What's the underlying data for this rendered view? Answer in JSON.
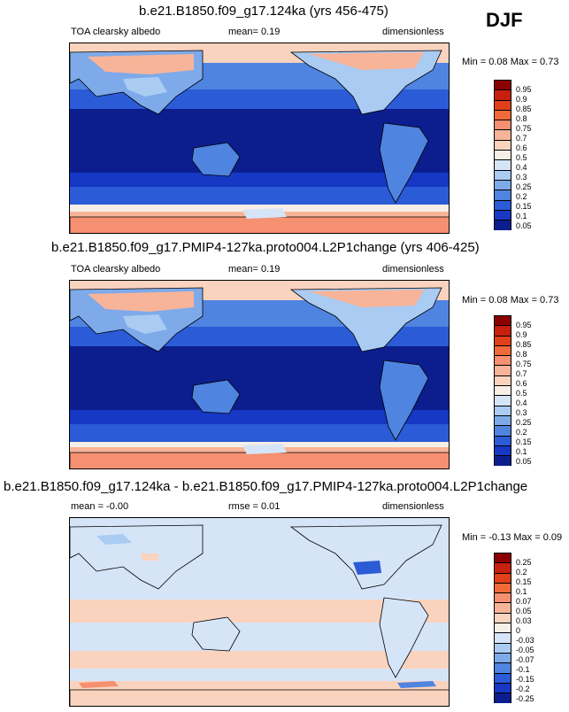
{
  "season": "DJF",
  "panels": [
    {
      "title": "b.e21.B1850.f09_g17.124ka (yrs 456-475)",
      "left_label": "TOA clearsky albedo",
      "center_label": "mean=  0.19",
      "right_label": "dimensionless",
      "minmax": "Min =  0.08 Max =  0.73",
      "levels": [
        "0.95",
        "0.9",
        "0.85",
        "0.8",
        "0.75",
        "0.7",
        "0.6",
        "0.5",
        "0.4",
        "0.3",
        "0.25",
        "0.2",
        "0.15",
        "0.1",
        "0.05"
      ]
    },
    {
      "title": "b.e21.B1850.f09_g17.PMIP4-127ka.proto004.L2P1change (yrs 406-425)",
      "left_label": "TOA clearsky albedo",
      "center_label": "mean=  0.19",
      "right_label": "dimensionless",
      "minmax": "Min =  0.08 Max =  0.73",
      "levels": [
        "0.95",
        "0.9",
        "0.85",
        "0.8",
        "0.75",
        "0.7",
        "0.6",
        "0.5",
        "0.4",
        "0.3",
        "0.25",
        "0.2",
        "0.15",
        "0.1",
        "0.05"
      ]
    },
    {
      "title": "b.e21.B1850.f09_g17.124ka - b.e21.B1850.f09_g17.PMIP4-127ka.proto004.L2P1change",
      "left_label": "mean =  -0.00",
      "center_label": "rmse =  0.01",
      "right_label": "dimensionless",
      "minmax": "Min =  -0.13 Max =  0.09",
      "levels": [
        "0.25",
        "0.2",
        "0.15",
        "0.1",
        "0.07",
        "0.05",
        "0.03",
        "0",
        "-0.03",
        "-0.05",
        "-0.07",
        "-0.1",
        "-0.15",
        "-0.2",
        "-0.25"
      ]
    }
  ],
  "colors": {
    "abs_scale": [
      "#8b0000",
      "#c8200e",
      "#e0401a",
      "#f06a3a",
      "#f59070",
      "#f8b498",
      "#fad3bf",
      "#f7eee6",
      "#d6e4f8",
      "#aacbf2",
      "#7eaaea",
      "#4f84e0",
      "#2b5bd6",
      "#1638c4",
      "#0c1e8e"
    ],
    "diff_scale": [
      "#8b0000",
      "#c8200e",
      "#e0401a",
      "#f06a3a",
      "#f59070",
      "#f8b498",
      "#fad3bf",
      "#f7eee6",
      "#d6e4f8",
      "#aacbf2",
      "#7eaaea",
      "#4f84e0",
      "#2b5bd6",
      "#1638c4",
      "#0c1e8e"
    ]
  }
}
